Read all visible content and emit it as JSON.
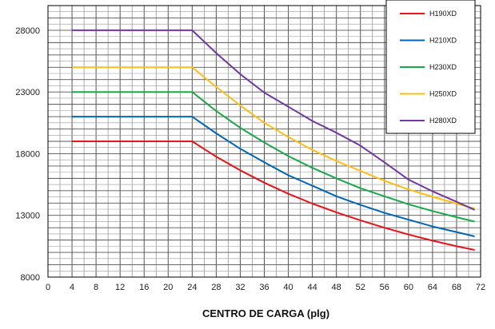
{
  "chart_data": {
    "type": "line",
    "title": "",
    "xlabel": "CENTRO DE CARGA (plg)",
    "ylabel": "",
    "xlim": [
      0,
      72
    ],
    "ylim": [
      8000,
      30000
    ],
    "x_ticks": [
      0,
      4,
      8,
      12,
      16,
      20,
      24,
      28,
      32,
      36,
      40,
      44,
      48,
      52,
      56,
      60,
      64,
      68,
      72
    ],
    "y_ticks": [
      8000,
      13000,
      18000,
      23000,
      28000
    ],
    "grid": true,
    "legend_position": "top-right",
    "series": [
      {
        "name": "H190XD",
        "color": "#e8141c",
        "points": [
          [
            4,
            19000
          ],
          [
            24,
            19000
          ],
          [
            28,
            17750
          ],
          [
            32,
            16650
          ],
          [
            36,
            15650
          ],
          [
            40,
            14750
          ],
          [
            44,
            13950
          ],
          [
            48,
            13250
          ],
          [
            52,
            12600
          ],
          [
            56,
            12000
          ],
          [
            60,
            11450
          ],
          [
            64,
            10950
          ],
          [
            68,
            10500
          ],
          [
            71,
            10200
          ]
        ]
      },
      {
        "name": "H210XD",
        "color": "#0066b3",
        "points": [
          [
            4,
            21000
          ],
          [
            24,
            21000
          ],
          [
            28,
            19650
          ],
          [
            32,
            18400
          ],
          [
            36,
            17300
          ],
          [
            40,
            16250
          ],
          [
            44,
            15400
          ],
          [
            48,
            14550
          ],
          [
            52,
            13850
          ],
          [
            56,
            13200
          ],
          [
            60,
            12650
          ],
          [
            64,
            12100
          ],
          [
            68,
            11650
          ],
          [
            71,
            11300
          ]
        ]
      },
      {
        "name": "H230XD",
        "color": "#1aa84a",
        "points": [
          [
            4,
            23000
          ],
          [
            24,
            23000
          ],
          [
            28,
            21450
          ],
          [
            32,
            20100
          ],
          [
            36,
            18900
          ],
          [
            40,
            17800
          ],
          [
            44,
            16850
          ],
          [
            48,
            16000
          ],
          [
            52,
            15200
          ],
          [
            56,
            14550
          ],
          [
            60,
            13900
          ],
          [
            64,
            13350
          ],
          [
            68,
            12850
          ],
          [
            71,
            12500
          ]
        ]
      },
      {
        "name": "H250XD",
        "color": "#fdbf14",
        "points": [
          [
            4,
            25000
          ],
          [
            24,
            25000
          ],
          [
            28,
            23400
          ],
          [
            32,
            21900
          ],
          [
            36,
            20500
          ],
          [
            40,
            19350
          ],
          [
            44,
            18300
          ],
          [
            48,
            17400
          ],
          [
            52,
            16600
          ],
          [
            56,
            15800
          ],
          [
            60,
            15100
          ],
          [
            64,
            14500
          ],
          [
            68,
            13950
          ],
          [
            71,
            13550
          ]
        ]
      },
      {
        "name": "H280XD",
        "color": "#7038a0",
        "points": [
          [
            4,
            28000
          ],
          [
            24,
            28000
          ],
          [
            28,
            26150
          ],
          [
            32,
            24450
          ],
          [
            36,
            22950
          ],
          [
            40,
            21800
          ],
          [
            44,
            20650
          ],
          [
            48,
            19700
          ],
          [
            52,
            18650
          ],
          [
            56,
            17300
          ],
          [
            60,
            15900
          ],
          [
            64,
            14950
          ],
          [
            68,
            14100
          ],
          [
            71,
            13450
          ]
        ]
      }
    ]
  }
}
